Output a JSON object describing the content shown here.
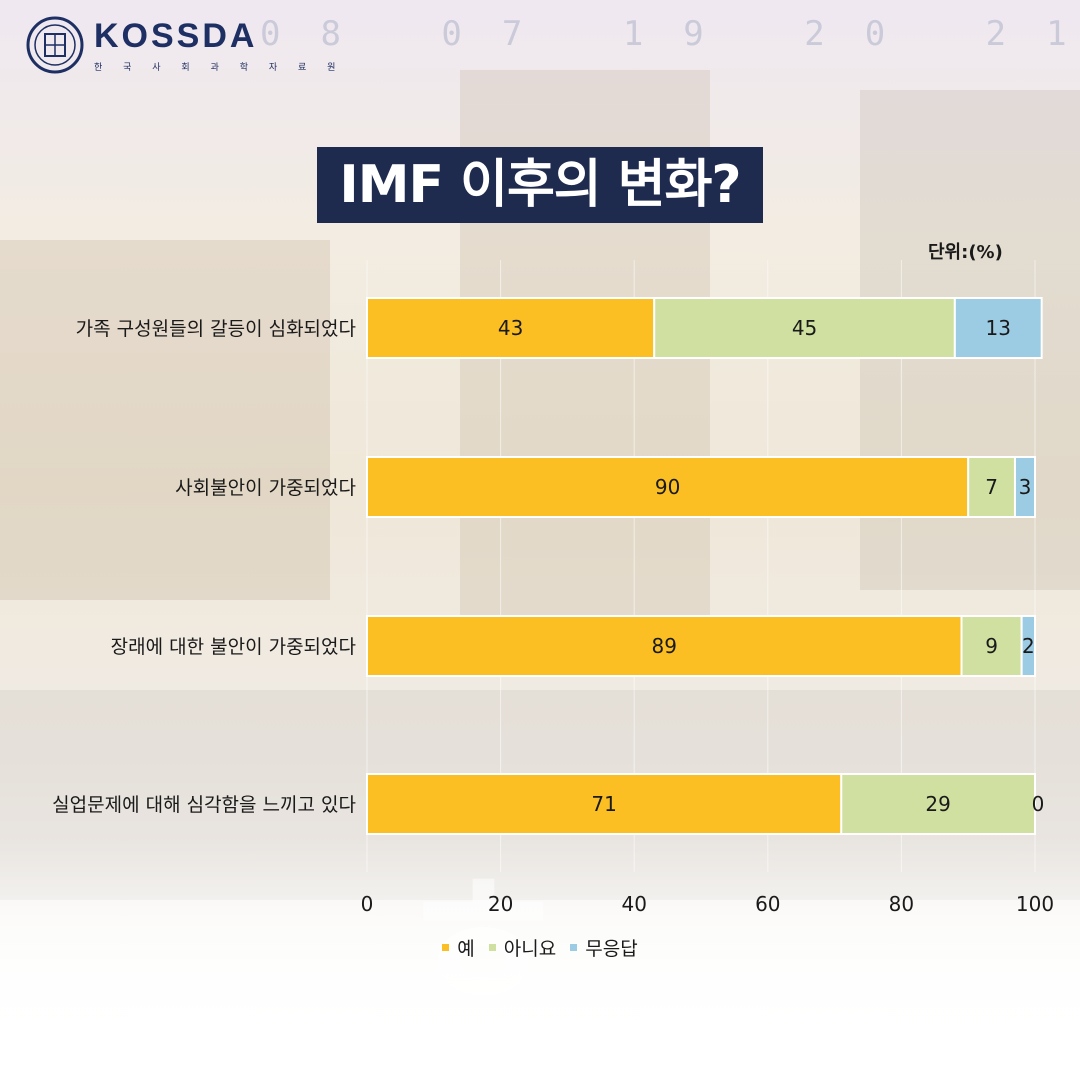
{
  "brand": {
    "name": "KOSSDA",
    "subtitle": "한 국 사 회 과 학 자 료 원",
    "seal_text": "KOSSDA"
  },
  "title": "IMF 이후의 변화?",
  "unit": "단위:(%)",
  "colors": {
    "yes": "#fbbf24",
    "no": "#cfe0a0",
    "none": "#9ccbe4",
    "title_bg": "#1f2a4f"
  },
  "chart_data": {
    "type": "bar",
    "orientation": "horizontal",
    "stacked": true,
    "categories": [
      "가족 구성원들의 갈등이 심화되었다",
      "사회불안이 가중되었다",
      "장래에 대한 불안이 가중되었다",
      "실업문제에 대해 심각함을 느끼고 있다"
    ],
    "series": [
      {
        "name": "예",
        "values": [
          43,
          90,
          89,
          71
        ]
      },
      {
        "name": "아니요",
        "values": [
          45,
          7,
          9,
          29
        ]
      },
      {
        "name": "무응답",
        "values": [
          13,
          3,
          2,
          0
        ]
      }
    ],
    "xlim": [
      0,
      100
    ],
    "xticks": [
      0,
      20,
      40,
      60,
      80,
      100
    ],
    "legend": "bottom",
    "grid": true
  }
}
